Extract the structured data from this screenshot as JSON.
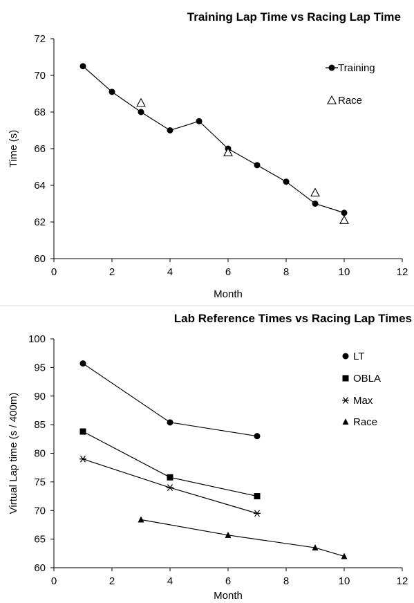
{
  "chart_data": [
    {
      "type": "line",
      "title": "Training Lap Time vs Racing Lap Time",
      "xlabel": "Month",
      "ylabel": "Time (s)",
      "xlim": [
        0,
        12
      ],
      "ylim": [
        60,
        72
      ],
      "xticks": [
        0,
        2,
        4,
        6,
        8,
        10,
        12
      ],
      "yticks": [
        60,
        62,
        64,
        66,
        68,
        70,
        72
      ],
      "grid": false,
      "legend_position": "top-right",
      "series": [
        {
          "name": "Training",
          "style": "line",
          "marker": "circle",
          "x": [
            1,
            2,
            3,
            4,
            5,
            6,
            7,
            8,
            9,
            10
          ],
          "y": [
            70.5,
            69.1,
            68.0,
            67.0,
            67.5,
            66.0,
            65.1,
            64.2,
            63.0,
            62.5
          ]
        },
        {
          "name": "Race",
          "style": "markers",
          "marker": "triangle-open",
          "x": [
            3,
            6,
            9,
            10
          ],
          "y": [
            68.5,
            65.8,
            63.6,
            62.1
          ]
        }
      ]
    },
    {
      "type": "line",
      "title": "Lab Reference Times vs Racing Lap Times",
      "xlabel": "Month",
      "ylabel": "Virtual Lap time (s / 400m)",
      "xlim": [
        0,
        12
      ],
      "ylim": [
        60,
        100
      ],
      "xticks": [
        0,
        2,
        4,
        6,
        8,
        10,
        12
      ],
      "yticks": [
        60,
        65,
        70,
        75,
        80,
        85,
        90,
        95,
        100
      ],
      "grid": false,
      "legend_position": "top-right",
      "series": [
        {
          "name": "LT",
          "style": "line",
          "marker": "circle",
          "x": [
            1,
            4,
            7
          ],
          "y": [
            95.7,
            85.4,
            83.0
          ]
        },
        {
          "name": "OBLA",
          "style": "line",
          "marker": "square",
          "x": [
            1,
            4,
            7
          ],
          "y": [
            83.8,
            75.8,
            72.5
          ]
        },
        {
          "name": "Max",
          "style": "line",
          "marker": "asterisk",
          "x": [
            1,
            4,
            7
          ],
          "y": [
            79.0,
            74.0,
            69.5
          ]
        },
        {
          "name": "Race",
          "style": "line",
          "marker": "triangle",
          "x": [
            3,
            6,
            9,
            10
          ],
          "y": [
            68.4,
            65.7,
            63.5,
            62.0
          ]
        }
      ]
    }
  ]
}
